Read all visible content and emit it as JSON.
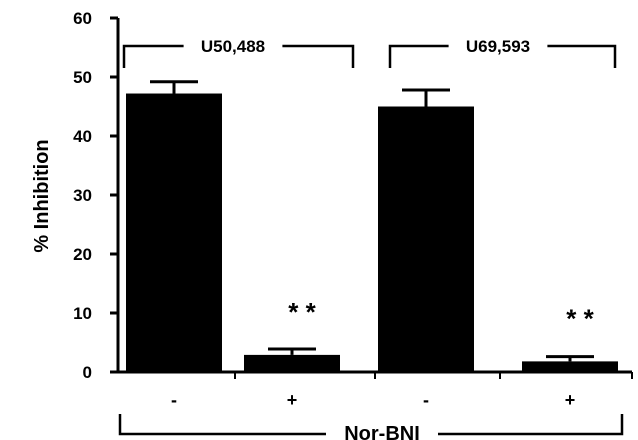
{
  "chart_data": {
    "type": "bar",
    "ylabel": "% Inhibition",
    "ylim": [
      0,
      60
    ],
    "yticks": [
      "0",
      "10",
      "20",
      "30",
      "40",
      "50",
      "60"
    ],
    "categories": [
      "-",
      "+",
      "-",
      "+"
    ],
    "values": [
      47.2,
      2.9,
      45.0,
      1.8
    ],
    "errors": [
      2.0,
      1.0,
      2.8,
      0.8
    ],
    "significance": [
      "",
      "* *",
      "",
      "* *"
    ],
    "groups": [
      {
        "label": "U50,488",
        "bars": [
          0,
          1
        ]
      },
      {
        "label": "U69,593",
        "bars": [
          2,
          3
        ]
      }
    ],
    "bottom_bracket_label": "Nor-BNI",
    "bar_color": "#000000",
    "grid": false,
    "legend": "none"
  }
}
